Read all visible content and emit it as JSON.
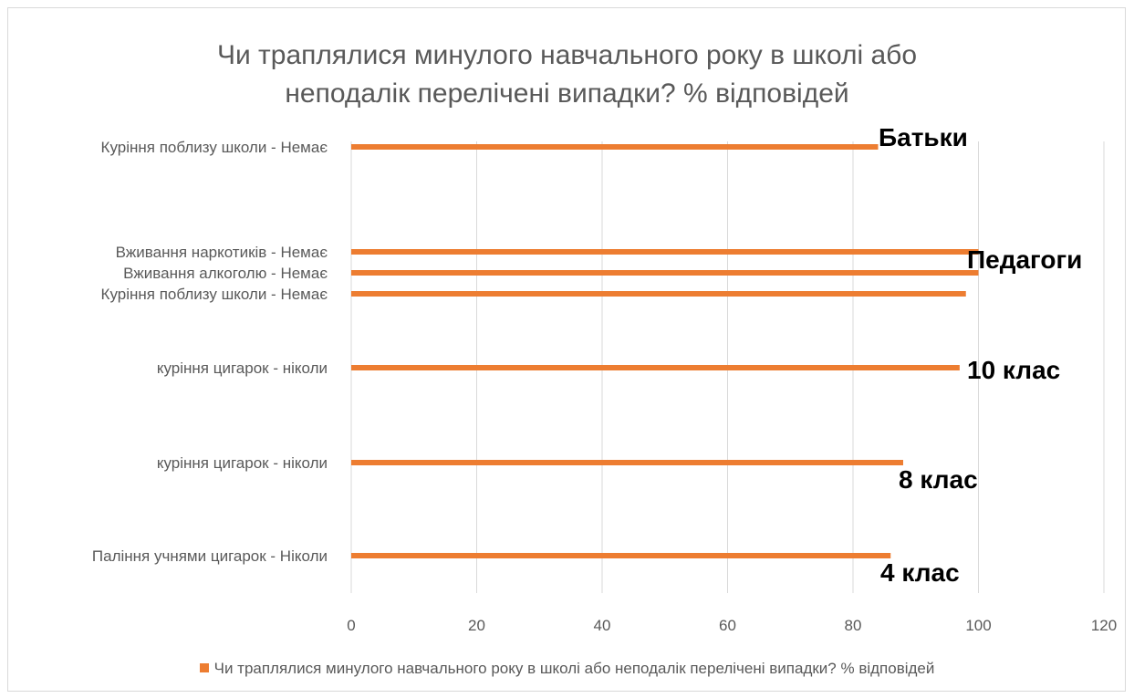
{
  "chart_data": {
    "type": "bar",
    "orientation": "horizontal",
    "title_lines": [
      "Чи траплялися минулого навчального року в школі або",
      "неподалік перелічені випадки? % відповідей"
    ],
    "categories": [
      "Куріння поблизу школи - Немає",
      "Вживання наркотиків - Немає",
      "Вживання алкоголю - Немає",
      "Куріння поблизу школи - Немає",
      "куріння цигарок - ніколи",
      "куріння цигарок - ніколи",
      "Паління учнями цигарок - Ніколи"
    ],
    "series": [
      {
        "name": "Чи траплялися минулого навчального року в школі або неподалік перелічені випадки? % відповідей",
        "values": [
          84,
          100,
          100,
          98,
          97,
          88,
          86
        ],
        "color": "#ed7d31"
      }
    ],
    "xlim": [
      0,
      120
    ],
    "xticks": [
      0,
      20,
      40,
      60,
      80,
      100,
      120
    ],
    "annotations": [
      "Батьки",
      "Педагоги",
      "10 клас",
      "8 клас",
      "4 клас"
    ],
    "grid": true,
    "legend": "bottom"
  }
}
